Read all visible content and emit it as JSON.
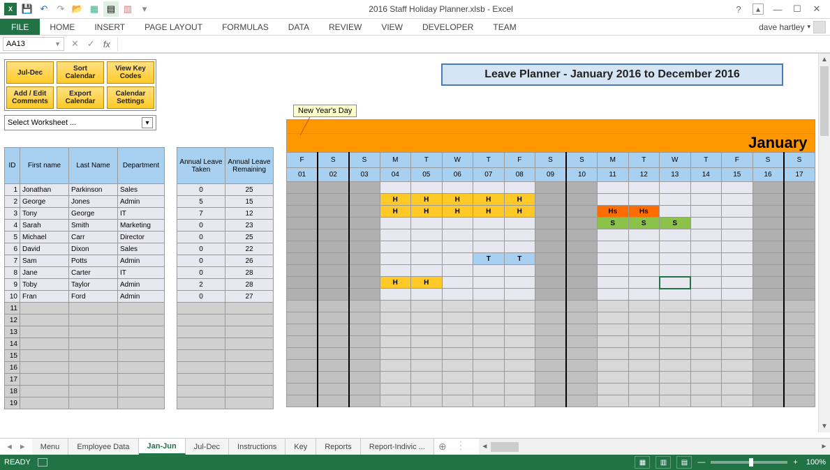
{
  "app": {
    "title": "2016 Staff Holiday Planner.xlsb - Excel",
    "user": "dave hartley"
  },
  "ribbon": {
    "file": "FILE",
    "tabs": [
      "HOME",
      "INSERT",
      "PAGE LAYOUT",
      "FORMULAS",
      "DATA",
      "REVIEW",
      "VIEW",
      "DEVELOPER",
      "TEAM"
    ]
  },
  "formula": {
    "name_box": "AA13",
    "fx": "fx",
    "value": ""
  },
  "panel": {
    "buttons": [
      [
        "Jul-Dec",
        "Sort Calendar",
        "View Key Codes"
      ],
      [
        "Add / Edit Comments",
        "Export Calendar",
        "Calendar Settings"
      ]
    ],
    "worksheet_selector": "Select Worksheet ..."
  },
  "planner_title": "Leave Planner - January 2016 to December 2016",
  "tooltip": "New Year's Day",
  "emp_headers": [
    "ID",
    "First name",
    "Last Name",
    "Department"
  ],
  "leave_headers": [
    "Annual Leave Taken",
    "Annual Leave Remaining"
  ],
  "employees": [
    {
      "id": 1,
      "first": "Jonathan",
      "last": "Parkinson",
      "dept": "Sales",
      "taken": 0,
      "remain": 25
    },
    {
      "id": 2,
      "first": "George",
      "last": "Jones",
      "dept": "Admin",
      "taken": 5,
      "remain": 15
    },
    {
      "id": 3,
      "first": "Tony",
      "last": "George",
      "dept": "IT",
      "taken": 7,
      "remain": 12
    },
    {
      "id": 4,
      "first": "Sarah",
      "last": "Smith",
      "dept": "Marketing",
      "taken": 0,
      "remain": 23
    },
    {
      "id": 5,
      "first": "Michael",
      "last": "Carr",
      "dept": "Director",
      "taken": 0,
      "remain": 25
    },
    {
      "id": 6,
      "first": "David",
      "last": "Dixon",
      "dept": "Sales",
      "taken": 0,
      "remain": 22
    },
    {
      "id": 7,
      "first": "Sam",
      "last": "Potts",
      "dept": "Admin",
      "taken": 0,
      "remain": 26
    },
    {
      "id": 8,
      "first": "Jane",
      "last": "Carter",
      "dept": "IT",
      "taken": 0,
      "remain": 28
    },
    {
      "id": 9,
      "first": "Toby",
      "last": "Taylor",
      "dept": "Admin",
      "taken": 2,
      "remain": 28
    },
    {
      "id": 10,
      "first": "Fran",
      "last": "Ford",
      "dept": "Admin",
      "taken": 0,
      "remain": 27
    }
  ],
  "empty_rows": [
    11,
    12,
    13,
    14,
    15,
    16,
    17,
    18,
    19
  ],
  "calendar": {
    "month": "January",
    "days": [
      {
        "dow": "F",
        "num": "01",
        "wkend": true,
        "sep": "r"
      },
      {
        "dow": "S",
        "num": "02",
        "wkend": true,
        "sep": "r-thick"
      },
      {
        "dow": "S",
        "num": "03",
        "wkend": true
      },
      {
        "dow": "M",
        "num": "04",
        "wkend": false
      },
      {
        "dow": "T",
        "num": "05",
        "wkend": false
      },
      {
        "dow": "W",
        "num": "06",
        "wkend": false
      },
      {
        "dow": "T",
        "num": "07",
        "wkend": false
      },
      {
        "dow": "F",
        "num": "08",
        "wkend": false
      },
      {
        "dow": "S",
        "num": "09",
        "wkend": true,
        "sep": "r-thick"
      },
      {
        "dow": "S",
        "num": "10",
        "wkend": true
      },
      {
        "dow": "M",
        "num": "11",
        "wkend": false
      },
      {
        "dow": "T",
        "num": "12",
        "wkend": false
      },
      {
        "dow": "W",
        "num": "13",
        "wkend": false
      },
      {
        "dow": "T",
        "num": "14",
        "wkend": false
      },
      {
        "dow": "F",
        "num": "15",
        "wkend": false
      },
      {
        "dow": "S",
        "num": "16",
        "wkend": true,
        "sep": "r-thick"
      },
      {
        "dow": "S",
        "num": "17",
        "wkend": true
      }
    ],
    "code_colors": {
      "H": "#ffca28",
      "Hs": "#ff6d00",
      "S": "#8bc34a",
      "T": "#a8d0f0"
    },
    "cells": {
      "2": {
        "4": "H",
        "5": "H",
        "6": "H",
        "7": "H",
        "8": "H"
      },
      "3": {
        "4": "H",
        "5": "H",
        "6": "H",
        "7": "H",
        "8": "H",
        "11": "Hs",
        "12": "Hs"
      },
      "4": {
        "11": "S",
        "12": "S",
        "13": "S"
      },
      "7": {
        "7": "T",
        "8": "T"
      },
      "9": {
        "4": "H",
        "5": "H"
      }
    },
    "selected": {
      "row_index": 8,
      "day": "13"
    }
  },
  "sheet_tabs": {
    "tabs": [
      "Menu",
      "Employee Data",
      "Jan-Jun",
      "Jul-Dec",
      "Instructions",
      "Key",
      "Reports",
      "Report-Indivic  ..."
    ],
    "active": "Jan-Jun"
  },
  "status": {
    "ready": "READY",
    "zoom": "100%"
  }
}
